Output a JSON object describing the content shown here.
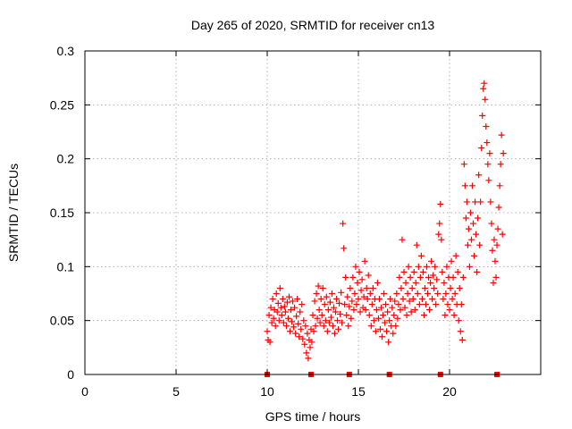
{
  "chart_data": {
    "type": "scatter",
    "title": "Day 265 of 2020, SRMTID for receiver cn13",
    "xlabel": "GPS time / hours",
    "ylabel": "SRMTID / TECUs",
    "xlim": [
      0,
      25
    ],
    "ylim": [
      0,
      0.3
    ],
    "x_ticks": [
      0,
      5,
      10,
      15,
      20
    ],
    "x_tick_labels": [
      "0",
      "5",
      "10",
      "15",
      "20"
    ],
    "y_ticks": [
      0,
      0.05,
      0.1,
      0.15,
      0.2,
      0.25,
      0.3
    ],
    "y_tick_labels": [
      "0",
      "0.05",
      "0.1",
      "0.15",
      "0.2",
      "0.25",
      "0.3"
    ],
    "grid": true,
    "marker": "+",
    "color": "#ff0000",
    "baseline_markers_x": [
      10.0,
      12.4,
      14.5,
      16.7,
      19.5,
      22.6
    ],
    "series": [
      {
        "name": "SRMTID",
        "points": [
          [
            10.0,
            0.04
          ],
          [
            10.05,
            0.032
          ],
          [
            10.1,
            0.055
          ],
          [
            10.15,
            0.03
          ],
          [
            10.2,
            0.062
          ],
          [
            10.25,
            0.048
          ],
          [
            10.3,
            0.07
          ],
          [
            10.35,
            0.052
          ],
          [
            10.4,
            0.06
          ],
          [
            10.45,
            0.045
          ],
          [
            10.5,
            0.075
          ],
          [
            10.55,
            0.058
          ],
          [
            10.6,
            0.066
          ],
          [
            10.65,
            0.05
          ],
          [
            10.7,
            0.08
          ],
          [
            10.75,
            0.062
          ],
          [
            10.8,
            0.055
          ],
          [
            10.85,
            0.07
          ],
          [
            10.9,
            0.048
          ],
          [
            10.95,
            0.063
          ],
          [
            11.0,
            0.058
          ],
          [
            11.05,
            0.045
          ],
          [
            11.1,
            0.067
          ],
          [
            11.15,
            0.052
          ],
          [
            11.2,
            0.072
          ],
          [
            11.25,
            0.04
          ],
          [
            11.3,
            0.06
          ],
          [
            11.35,
            0.049
          ],
          [
            11.4,
            0.068
          ],
          [
            11.45,
            0.044
          ],
          [
            11.5,
            0.062
          ],
          [
            11.55,
            0.038
          ],
          [
            11.6,
            0.054
          ],
          [
            11.65,
            0.07
          ],
          [
            11.7,
            0.047
          ],
          [
            11.75,
            0.035
          ],
          [
            11.8,
            0.058
          ],
          [
            11.85,
            0.042
          ],
          [
            11.9,
            0.065
          ],
          [
            11.95,
            0.033
          ],
          [
            12.0,
            0.05
          ],
          [
            12.05,
            0.028
          ],
          [
            12.1,
            0.045
          ],
          [
            12.15,
            0.02
          ],
          [
            12.2,
            0.038
          ],
          [
            12.25,
            0.015
          ],
          [
            12.3,
            0.032
          ],
          [
            12.35,
            0.025
          ],
          [
            12.4,
            0.042
          ],
          [
            12.45,
            0.03
          ],
          [
            12.5,
            0.055
          ],
          [
            12.55,
            0.04
          ],
          [
            12.6,
            0.068
          ],
          [
            12.65,
            0.045
          ],
          [
            12.7,
            0.075
          ],
          [
            12.75,
            0.052
          ],
          [
            12.8,
            0.082
          ],
          [
            12.85,
            0.06
          ],
          [
            12.9,
            0.048
          ],
          [
            12.95,
            0.07
          ],
          [
            13.0,
            0.055
          ],
          [
            13.05,
            0.08
          ],
          [
            13.1,
            0.045
          ],
          [
            13.15,
            0.065
          ],
          [
            13.2,
            0.05
          ],
          [
            13.25,
            0.072
          ],
          [
            13.3,
            0.04
          ],
          [
            13.35,
            0.06
          ],
          [
            13.4,
            0.048
          ],
          [
            13.45,
            0.067
          ],
          [
            13.5,
            0.053
          ],
          [
            13.55,
            0.075
          ],
          [
            13.6,
            0.045
          ],
          [
            13.65,
            0.062
          ],
          [
            13.7,
            0.038
          ],
          [
            13.75,
            0.058
          ],
          [
            13.8,
            0.07
          ],
          [
            13.85,
            0.05
          ],
          [
            13.9,
            0.042
          ],
          [
            13.95,
            0.066
          ],
          [
            14.0,
            0.056
          ],
          [
            14.05,
            0.076
          ],
          [
            14.1,
            0.048
          ],
          [
            14.15,
            0.14
          ],
          [
            14.2,
            0.117
          ],
          [
            14.25,
            0.065
          ],
          [
            14.3,
            0.09
          ],
          [
            14.35,
            0.055
          ],
          [
            14.4,
            0.072
          ],
          [
            14.45,
            0.045
          ],
          [
            14.5,
            0.063
          ],
          [
            14.55,
            0.08
          ],
          [
            14.6,
            0.052
          ],
          [
            14.65,
            0.068
          ],
          [
            14.7,
            0.09
          ],
          [
            14.75,
            0.06
          ],
          [
            14.8,
            0.075
          ],
          [
            14.85,
            0.1
          ],
          [
            14.9,
            0.065
          ],
          [
            14.95,
            0.085
          ],
          [
            15.0,
            0.07
          ],
          [
            15.05,
            0.095
          ],
          [
            15.1,
            0.058
          ],
          [
            15.15,
            0.078
          ],
          [
            15.2,
            0.088
          ],
          [
            15.25,
            0.062
          ],
          [
            15.3,
            0.072
          ],
          [
            15.35,
            0.105
          ],
          [
            15.4,
            0.06
          ],
          [
            15.45,
            0.08
          ],
          [
            15.5,
            0.07
          ],
          [
            15.55,
            0.092
          ],
          [
            15.6,
            0.055
          ],
          [
            15.65,
            0.075
          ],
          [
            15.7,
            0.045
          ],
          [
            15.75,
            0.065
          ],
          [
            15.8,
            0.08
          ],
          [
            15.85,
            0.05
          ],
          [
            15.9,
            0.07
          ],
          [
            15.95,
            0.04
          ],
          [
            16.0,
            0.06
          ],
          [
            16.05,
            0.085
          ],
          [
            16.1,
            0.052
          ],
          [
            16.15,
            0.07
          ],
          [
            16.2,
            0.042
          ],
          [
            16.25,
            0.062
          ],
          [
            16.3,
            0.035
          ],
          [
            16.35,
            0.055
          ],
          [
            16.4,
            0.075
          ],
          [
            16.45,
            0.048
          ],
          [
            16.5,
            0.065
          ],
          [
            16.55,
            0.04
          ],
          [
            16.6,
            0.058
          ],
          [
            16.65,
            0.03
          ],
          [
            16.7,
            0.05
          ],
          [
            16.75,
            0.07
          ],
          [
            16.8,
            0.045
          ],
          [
            16.85,
            0.062
          ],
          [
            16.9,
            0.038
          ],
          [
            16.95,
            0.055
          ],
          [
            17.0,
            0.068
          ],
          [
            17.05,
            0.045
          ],
          [
            17.1,
            0.075
          ],
          [
            17.15,
            0.052
          ],
          [
            17.2,
            0.065
          ],
          [
            17.25,
            0.09
          ],
          [
            17.3,
            0.06
          ],
          [
            17.35,
            0.08
          ],
          [
            17.4,
            0.125
          ],
          [
            17.45,
            0.07
          ],
          [
            17.5,
            0.095
          ],
          [
            17.55,
            0.062
          ],
          [
            17.6,
            0.085
          ],
          [
            17.65,
            0.055
          ],
          [
            17.7,
            0.075
          ],
          [
            17.75,
            0.1
          ],
          [
            17.8,
            0.068
          ],
          [
            17.85,
            0.09
          ],
          [
            17.9,
            0.058
          ],
          [
            17.95,
            0.08
          ],
          [
            18.0,
            0.07
          ],
          [
            18.05,
            0.095
          ],
          [
            18.1,
            0.06
          ],
          [
            18.15,
            0.085
          ],
          [
            18.2,
            0.12
          ],
          [
            18.25,
            0.075
          ],
          [
            18.3,
            0.1
          ],
          [
            18.35,
            0.065
          ],
          [
            18.4,
            0.09
          ],
          [
            18.45,
            0.11
          ],
          [
            18.5,
            0.07
          ],
          [
            18.55,
            0.095
          ],
          [
            18.6,
            0.055
          ],
          [
            18.65,
            0.08
          ],
          [
            18.7,
            0.065
          ],
          [
            18.75,
            0.1
          ],
          [
            18.8,
            0.075
          ],
          [
            18.85,
            0.09
          ],
          [
            18.9,
            0.06
          ],
          [
            18.95,
            0.085
          ],
          [
            19.0,
            0.105
          ],
          [
            19.05,
            0.07
          ],
          [
            19.1,
            0.092
          ],
          [
            19.15,
            0.08
          ],
          [
            19.2,
            0.1
          ],
          [
            19.25,
            0.065
          ],
          [
            19.3,
            0.088
          ],
          [
            19.35,
            0.075
          ],
          [
            19.4,
            0.13
          ],
          [
            19.45,
            0.14
          ],
          [
            19.5,
            0.158
          ],
          [
            19.55,
            0.125
          ],
          [
            19.6,
            0.095
          ],
          [
            19.65,
            0.07
          ],
          [
            19.7,
            0.085
          ],
          [
            19.75,
            0.055
          ],
          [
            19.8,
            0.075
          ],
          [
            19.85,
            0.1
          ],
          [
            19.9,
            0.065
          ],
          [
            19.95,
            0.09
          ],
          [
            20.0,
            0.06
          ],
          [
            20.05,
            0.08
          ],
          [
            20.1,
            0.105
          ],
          [
            20.15,
            0.07
          ],
          [
            20.2,
            0.09
          ],
          [
            20.25,
            0.055
          ],
          [
            20.3,
            0.075
          ],
          [
            20.35,
            0.11
          ],
          [
            20.4,
            0.065
          ],
          [
            20.45,
            0.095
          ],
          [
            20.5,
            0.05
          ],
          [
            20.55,
            0.08
          ],
          [
            20.6,
            0.04
          ],
          [
            20.65,
            0.065
          ],
          [
            20.7,
            0.032
          ],
          [
            20.75,
            0.09
          ],
          [
            20.8,
            0.195
          ],
          [
            20.85,
            0.175
          ],
          [
            20.9,
            0.145
          ],
          [
            20.95,
            0.16
          ],
          [
            21.0,
            0.12
          ],
          [
            21.05,
            0.135
          ],
          [
            21.1,
            0.1
          ],
          [
            21.15,
            0.15
          ],
          [
            21.2,
            0.125
          ],
          [
            21.25,
            0.175
          ],
          [
            21.3,
            0.14
          ],
          [
            21.35,
            0.11
          ],
          [
            21.4,
            0.16
          ],
          [
            21.45,
            0.13
          ],
          [
            21.5,
            0.095
          ],
          [
            21.55,
            0.145
          ],
          [
            21.6,
            0.185
          ],
          [
            21.65,
            0.12
          ],
          [
            21.7,
            0.16
          ],
          [
            21.75,
            0.21
          ],
          [
            21.8,
            0.24
          ],
          [
            21.85,
            0.265
          ],
          [
            21.9,
            0.27
          ],
          [
            21.95,
            0.255
          ],
          [
            22.0,
            0.23
          ],
          [
            22.05,
            0.215
          ],
          [
            22.1,
            0.195
          ],
          [
            22.15,
            0.18
          ],
          [
            22.2,
            0.205
          ],
          [
            22.25,
            0.16
          ],
          [
            22.3,
            0.14
          ],
          [
            22.35,
            0.115
          ],
          [
            22.4,
            0.085
          ],
          [
            22.45,
            0.125
          ],
          [
            22.5,
            0.105
          ],
          [
            22.55,
            0.09
          ],
          [
            22.6,
            0.12
          ],
          [
            22.65,
            0.135
          ],
          [
            22.7,
            0.155
          ],
          [
            22.75,
            0.175
          ],
          [
            22.8,
            0.195
          ],
          [
            22.85,
            0.222
          ],
          [
            22.9,
            0.13
          ],
          [
            22.95,
            0.205
          ]
        ]
      }
    ]
  }
}
